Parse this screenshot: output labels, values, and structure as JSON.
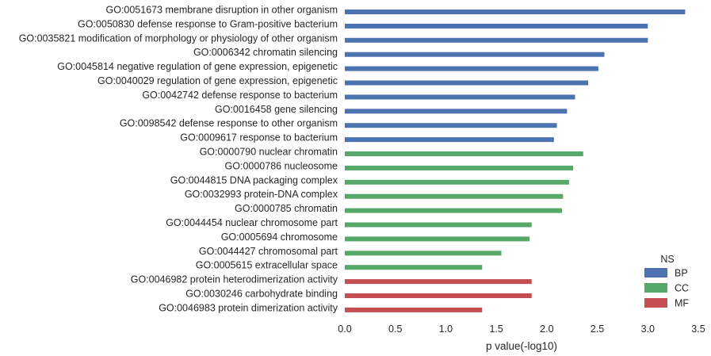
{
  "chart_data": {
    "type": "bar",
    "orientation": "horizontal",
    "xlabel": "p value(-log10)",
    "xlim": [
      0,
      3.5
    ],
    "xticks": [
      "0.0",
      "0.5",
      "1.0",
      "1.5",
      "2.0",
      "2.5",
      "3.0",
      "3.5"
    ],
    "grid": false,
    "legend": {
      "title": "NS",
      "placement": "bottom-right",
      "entries": [
        {
          "name": "BP",
          "color": "#4c72b0"
        },
        {
          "name": "CC",
          "color": "#55a868"
        },
        {
          "name": "MF",
          "color": "#c44e52"
        }
      ]
    },
    "bars": [
      {
        "label": "GO:0051673 membrane disruption in other organism",
        "value": 3.37,
        "ns": "BP"
      },
      {
        "label": "GO:0050830 defense response to Gram-positive bacterium",
        "value": 3.0,
        "ns": "BP"
      },
      {
        "label": "GO:0035821 modification of morphology or physiology of other organism",
        "value": 3.0,
        "ns": "BP"
      },
      {
        "label": "GO:0006342 chromatin silencing",
        "value": 2.57,
        "ns": "BP"
      },
      {
        "label": "GO:0045814 negative regulation of gene expression, epigenetic",
        "value": 2.51,
        "ns": "BP"
      },
      {
        "label": "GO:0040029 regulation of gene expression, epigenetic",
        "value": 2.41,
        "ns": "BP"
      },
      {
        "label": "GO:0042742 defense response to bacterium",
        "value": 2.28,
        "ns": "BP"
      },
      {
        "label": "GO:0016458 gene silencing",
        "value": 2.2,
        "ns": "BP"
      },
      {
        "label": "GO:0098542 defense response to other organism",
        "value": 2.1,
        "ns": "BP"
      },
      {
        "label": "GO:0009617 response to bacterium",
        "value": 2.07,
        "ns": "BP"
      },
      {
        "label": "GO:0000790 nuclear chromatin",
        "value": 2.36,
        "ns": "CC"
      },
      {
        "label": "GO:0000786 nucleosome",
        "value": 2.26,
        "ns": "CC"
      },
      {
        "label": "GO:0044815 DNA packaging complex",
        "value": 2.22,
        "ns": "CC"
      },
      {
        "label": "GO:0032993 protein-DNA complex",
        "value": 2.16,
        "ns": "CC"
      },
      {
        "label": "GO:0000785 chromatin",
        "value": 2.15,
        "ns": "CC"
      },
      {
        "label": "GO:0044454 nuclear chromosome part",
        "value": 1.85,
        "ns": "CC"
      },
      {
        "label": "GO:0005694 chromosome",
        "value": 1.83,
        "ns": "CC"
      },
      {
        "label": "GO:0044427 chromosomal part",
        "value": 1.55,
        "ns": "CC"
      },
      {
        "label": "GO:0005615 extracellular space",
        "value": 1.36,
        "ns": "CC"
      },
      {
        "label": "GO:0046982 protein heterodimerization activity",
        "value": 1.85,
        "ns": "MF"
      },
      {
        "label": "GO:0030246 carbohydrate binding",
        "value": 1.85,
        "ns": "MF"
      },
      {
        "label": "GO:0046983 protein dimerization activity",
        "value": 1.36,
        "ns": "MF"
      }
    ]
  }
}
